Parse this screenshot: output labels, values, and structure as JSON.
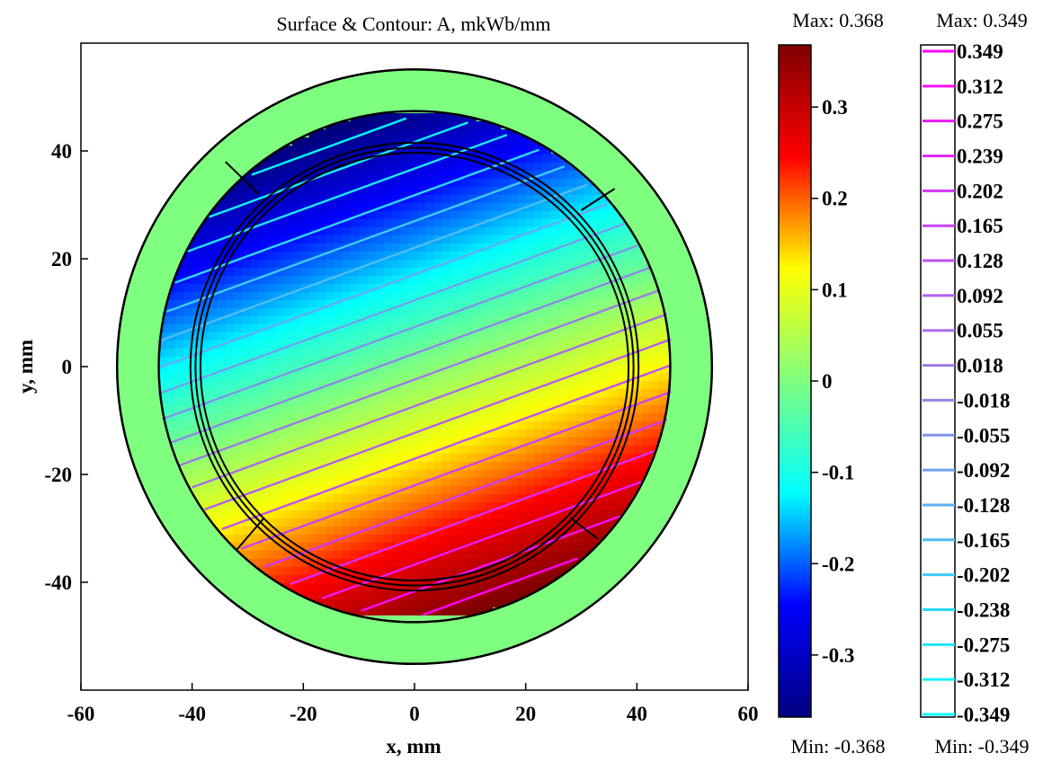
{
  "chart_data": {
    "type": "heatmap",
    "title": "Surface & Contour: A, mkWb/mm",
    "xlabel": "x, mm",
    "ylabel": "y, mm",
    "xlim": [
      -60,
      60
    ],
    "ylim": [
      -60,
      60
    ],
    "x_ticks": [
      "-60",
      "-40",
      "-20",
      "0",
      "20",
      "40",
      "60"
    ],
    "y_ticks": [
      "40",
      "20",
      "0",
      "-20",
      "-40"
    ],
    "surface": {
      "max_label": "Max: 0.368",
      "min_label": "Min: -0.368",
      "max": 0.368,
      "min": -0.368,
      "colorbar_ticks": [
        "0.3",
        "0.2",
        "0.1",
        "0",
        "-0.1",
        "-0.2",
        "-0.3"
      ],
      "colormap": [
        "#00007f",
        "#0000ff",
        "#00ffff",
        "#7fff7f",
        "#ffff00",
        "#ff0000",
        "#7f0000"
      ]
    },
    "contour": {
      "max_label": "Max: 0.349",
      "min_label": "Min: -0.349",
      "levels": [
        "0.349",
        "0.312",
        "0.275",
        "0.239",
        "0.202",
        "0.165",
        "0.128",
        "0.092",
        "0.055",
        "0.018",
        "-0.018",
        "-0.055",
        "-0.092",
        "-0.128",
        "-0.165",
        "-0.202",
        "-0.238",
        "-0.275",
        "-0.312",
        "-0.349"
      ],
      "color_max": "#ff00ff",
      "color_min": "#00ffff"
    },
    "outer_ring_color": "#7fff7f",
    "grid": false
  }
}
